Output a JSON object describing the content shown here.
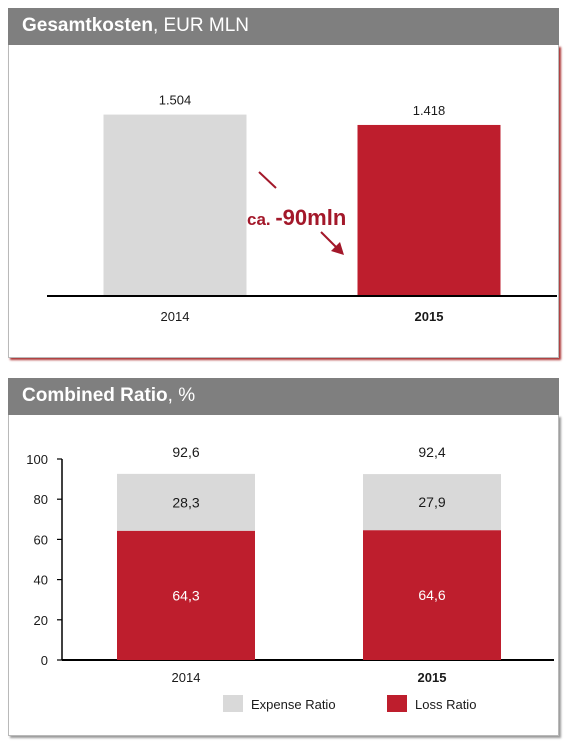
{
  "panels": [
    {
      "title_bold": "Gesamtkosten",
      "title_rest": ", EUR MLN",
      "annotation": {
        "prefix": "ca. ",
        "value": "-90mln"
      }
    },
    {
      "title_bold": "Combined Ratio",
      "title_rest": ", %"
    }
  ],
  "colors": {
    "grey": "#d9d9d9",
    "red": "#be1e2d",
    "header": "#7f7f7f",
    "annotation": "#a3182a"
  },
  "chart_data": [
    {
      "type": "bar",
      "title": "Gesamtkosten, EUR MLN",
      "categories": [
        "2014",
        "2015"
      ],
      "values": [
        1504,
        1418
      ],
      "value_labels": [
        "1.504",
        "1.418"
      ],
      "bar_colors": [
        "#d9d9d9",
        "#be1e2d"
      ],
      "bold_categories": [
        false,
        true
      ],
      "ylim": [
        0,
        1600
      ]
    },
    {
      "type": "bar",
      "stacked": true,
      "title": "Combined Ratio, %",
      "categories": [
        "2014",
        "2015"
      ],
      "series": [
        {
          "name": "Loss Ratio",
          "values": [
            64.3,
            64.6
          ],
          "labels": [
            "64,3",
            "64,6"
          ],
          "color": "#be1e2d"
        },
        {
          "name": "Expense Ratio",
          "values": [
            28.3,
            27.9
          ],
          "labels": [
            "28,3",
            "27,9"
          ],
          "color": "#d9d9d9"
        }
      ],
      "totals": [
        "92,6",
        "92,4"
      ],
      "total_values": [
        92.6,
        92.4
      ],
      "bold_categories": [
        false,
        true
      ],
      "ylim": [
        0,
        100
      ],
      "yticks": [
        0,
        20,
        40,
        60,
        80,
        100
      ],
      "legend": [
        "Expense Ratio",
        "Loss Ratio"
      ],
      "legend_placement": "bottom"
    }
  ]
}
